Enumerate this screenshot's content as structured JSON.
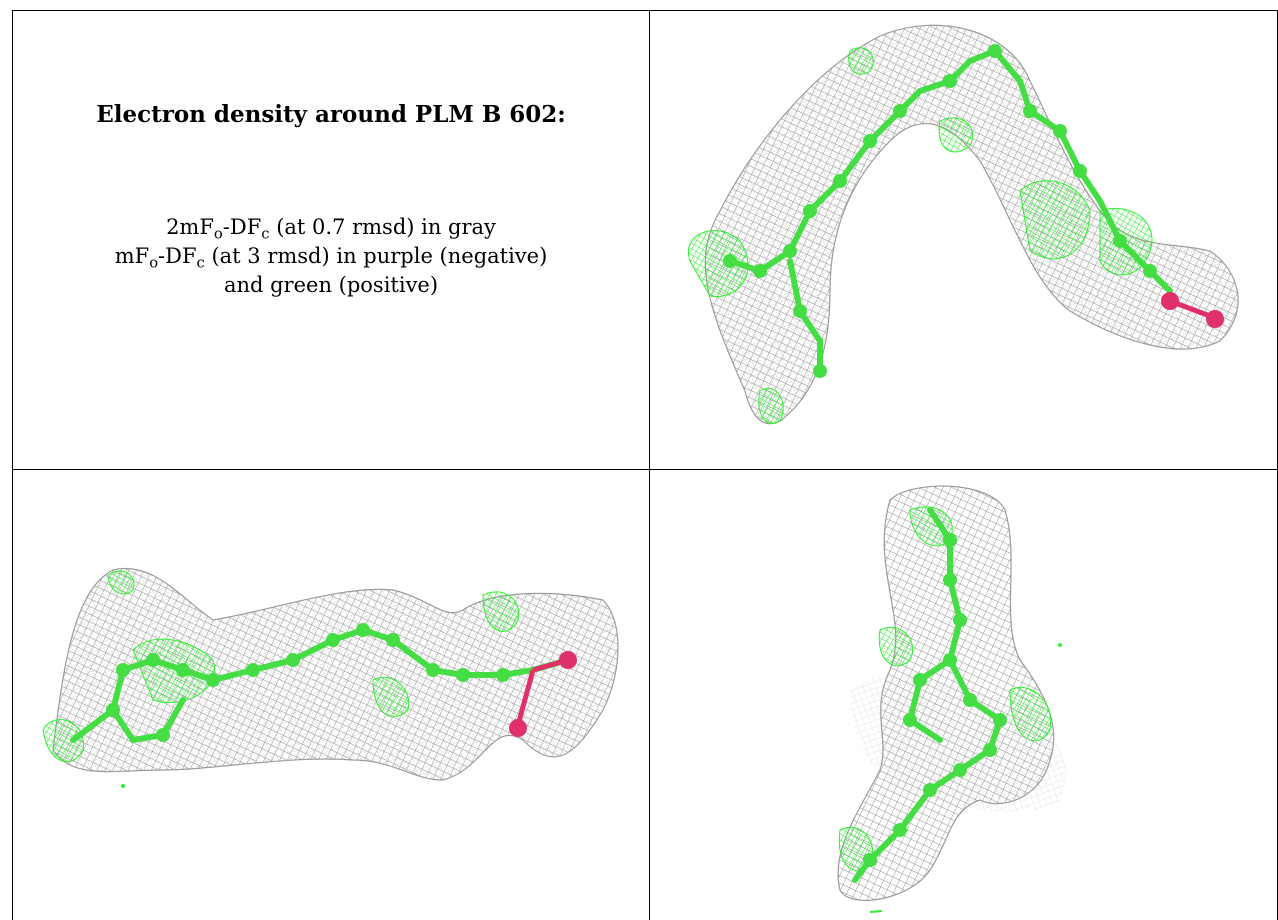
{
  "caption": {
    "title": "Electron density around PLM B 602:",
    "line1": {
      "prefix": "2mF",
      "sub1": "o",
      "mid": "-DF",
      "sub2": "c",
      "suffix": " (at 0.7 rmsd) in gray"
    },
    "line2": {
      "prefix": "mF",
      "sub1": "o",
      "mid": "-DF",
      "sub2": "c",
      "suffix": " (at 3 rmsd) in purple (negative)"
    },
    "line3": "and green (positive)"
  },
  "colors": {
    "mesh_gray": "#9a9a9a",
    "mesh_green": "#33ee33",
    "atom_green": "#44dd44",
    "atom_oxygen": "#e0306a",
    "border": "#000000"
  }
}
